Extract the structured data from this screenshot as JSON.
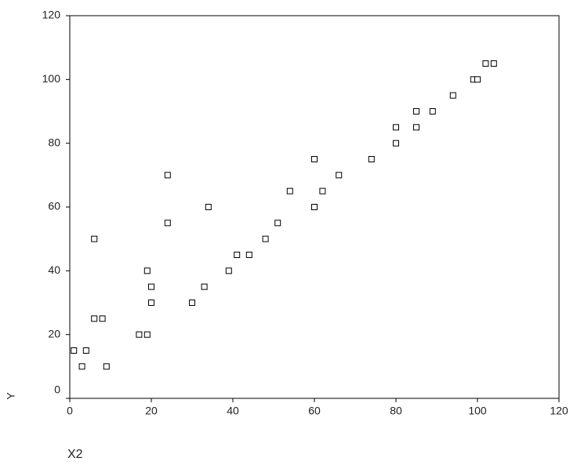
{
  "chart_data": {
    "type": "scatter",
    "x_label": "X2",
    "y_label": "Y",
    "x": [
      1,
      4,
      3,
      9,
      6,
      8,
      6,
      17,
      19,
      19,
      20,
      20,
      24,
      24,
      30,
      33,
      34,
      39,
      41,
      44,
      48,
      51,
      54,
      60,
      60,
      62,
      66,
      74,
      80,
      80,
      85,
      85,
      89,
      94,
      99,
      100,
      102,
      104
    ],
    "y": [
      15,
      15,
      10,
      10,
      25,
      25,
      50,
      20,
      20,
      40,
      35,
      30,
      70,
      55,
      30,
      35,
      60,
      40,
      45,
      45,
      50,
      55,
      65,
      75,
      60,
      65,
      70,
      75,
      80,
      85,
      85,
      90,
      90,
      95,
      100,
      100,
      105,
      105
    ],
    "color": "#000000",
    "xlim": [
      0,
      120
    ],
    "xticks": [
      0,
      20,
      40,
      60,
      80,
      100,
      120
    ],
    "ylim": [
      0,
      120
    ],
    "yticks": [
      0,
      20,
      40,
      60,
      80,
      100,
      120
    ]
  }
}
